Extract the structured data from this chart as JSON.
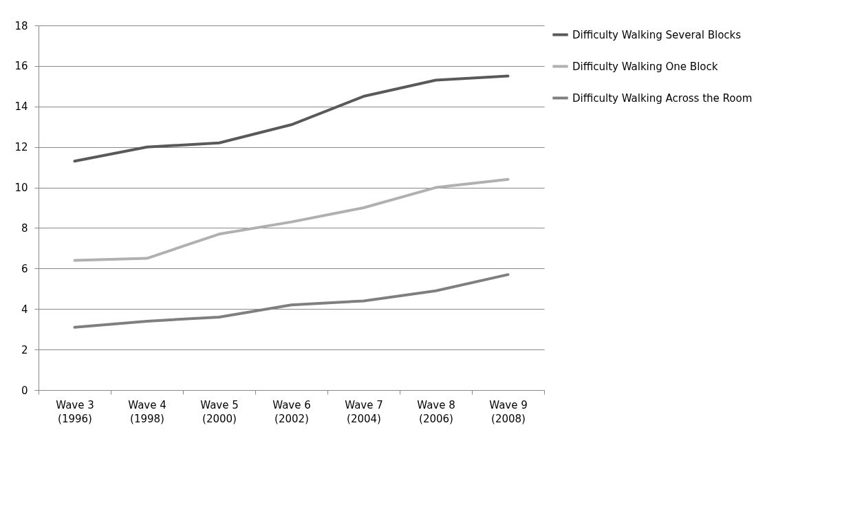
{
  "chart_data": {
    "type": "line",
    "categories": [
      "Wave 3 (1996)",
      "Wave 4 (1998)",
      "Wave 5 (2000)",
      "Wave 6 (2002)",
      "Wave 7 (2004)",
      "Wave 8 (2006)",
      "Wave 9 (2008)"
    ],
    "series": [
      {
        "name": "Difficulty Walking  Several Blocks",
        "color": "#595959",
        "values": [
          11.3,
          12.0,
          12.2,
          13.1,
          14.5,
          15.3,
          15.5
        ]
      },
      {
        "name": "Difficulty Walking  One Block",
        "color": "#b0b0b0",
        "values": [
          6.4,
          6.5,
          7.7,
          8.3,
          9.0,
          10.0,
          10.4
        ]
      },
      {
        "name": "Difficulty Walking Across the Room",
        "color": "#7f7f7f",
        "values": [
          3.1,
          3.4,
          3.6,
          4.2,
          4.4,
          4.9,
          5.7
        ]
      }
    ],
    "ylim": [
      0,
      18
    ],
    "yticks": [
      0,
      2,
      4,
      6,
      8,
      10,
      12,
      14,
      16,
      18
    ],
    "grid": "y",
    "legend": "right",
    "marker": "none",
    "line_style": "solid"
  }
}
